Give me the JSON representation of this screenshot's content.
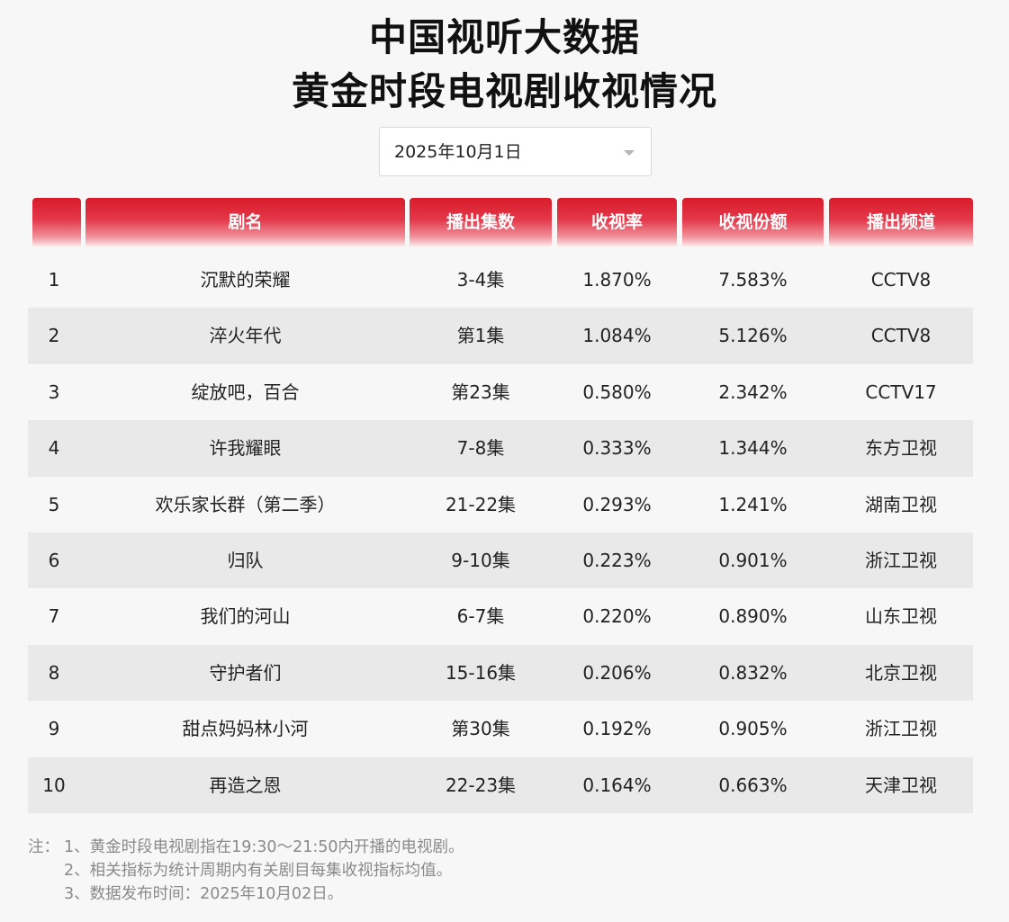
{
  "title": {
    "line1": "中国视听大数据",
    "line2": "黄金时段电视剧收视情况"
  },
  "date_select": {
    "value": "2025年10月1日"
  },
  "table": {
    "headers": [
      "",
      "剧名",
      "播出集数",
      "收视率",
      "收视份额",
      "播出频道"
    ],
    "rows": [
      {
        "rank": "1",
        "name": "沉默的荣耀",
        "episodes": "3-4集",
        "rating": "1.870%",
        "share": "7.583%",
        "channel": "CCTV8"
      },
      {
        "rank": "2",
        "name": "淬火年代",
        "episodes": "第1集",
        "rating": "1.084%",
        "share": "5.126%",
        "channel": "CCTV8"
      },
      {
        "rank": "3",
        "name": "绽放吧，百合",
        "episodes": "第23集",
        "rating": "0.580%",
        "share": "2.342%",
        "channel": "CCTV17"
      },
      {
        "rank": "4",
        "name": "许我耀眼",
        "episodes": "7-8集",
        "rating": "0.333%",
        "share": "1.344%",
        "channel": "东方卫视"
      },
      {
        "rank": "5",
        "name": "欢乐家长群（第二季）",
        "episodes": "21-22集",
        "rating": "0.293%",
        "share": "1.241%",
        "channel": "湖南卫视"
      },
      {
        "rank": "6",
        "name": "归队",
        "episodes": "9-10集",
        "rating": "0.223%",
        "share": "0.901%",
        "channel": "浙江卫视"
      },
      {
        "rank": "7",
        "name": "我们的河山",
        "episodes": "6-7集",
        "rating": "0.220%",
        "share": "0.890%",
        "channel": "山东卫视"
      },
      {
        "rank": "8",
        "name": "守护者们",
        "episodes": "15-16集",
        "rating": "0.206%",
        "share": "0.832%",
        "channel": "北京卫视"
      },
      {
        "rank": "9",
        "name": "甜点妈妈林小河",
        "episodes": "第30集",
        "rating": "0.192%",
        "share": "0.905%",
        "channel": "浙江卫视"
      },
      {
        "rank": "10",
        "name": "再造之恩",
        "episodes": "22-23集",
        "rating": "0.164%",
        "share": "0.663%",
        "channel": "天津卫视"
      }
    ]
  },
  "notes": {
    "prefix": "注：",
    "lines": [
      "1、黄金时段电视剧指在19:30～21:50内开播的电视剧。",
      "2、相关指标为统计周期内有关剧目每集收视指标均值。",
      "3、数据发布时间：2025年10月02日。"
    ]
  }
}
